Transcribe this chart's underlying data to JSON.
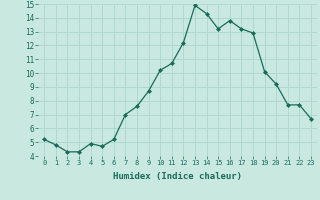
{
  "x": [
    0,
    1,
    2,
    3,
    4,
    5,
    6,
    7,
    8,
    9,
    10,
    11,
    12,
    13,
    14,
    15,
    16,
    17,
    18,
    19,
    20,
    21,
    22,
    23
  ],
  "y": [
    5.2,
    4.8,
    4.3,
    4.3,
    4.9,
    4.7,
    5.2,
    7.0,
    7.6,
    8.7,
    10.2,
    10.7,
    12.2,
    14.9,
    14.3,
    13.2,
    13.8,
    13.2,
    12.9,
    10.1,
    9.2,
    7.7,
    7.7,
    6.7
  ],
  "xlabel": "Humidex (Indice chaleur)",
  "line_color": "#1a6b5a",
  "bg_color": "#c8e8e0",
  "grid_color": "#b0d8d0",
  "ylim": [
    4,
    15
  ],
  "xlim": [
    -0.5,
    23.5
  ],
  "yticks": [
    4,
    5,
    6,
    7,
    8,
    9,
    10,
    11,
    12,
    13,
    14,
    15
  ],
  "xticks": [
    0,
    1,
    2,
    3,
    4,
    5,
    6,
    7,
    8,
    9,
    10,
    11,
    12,
    13,
    14,
    15,
    16,
    17,
    18,
    19,
    20,
    21,
    22,
    23
  ]
}
